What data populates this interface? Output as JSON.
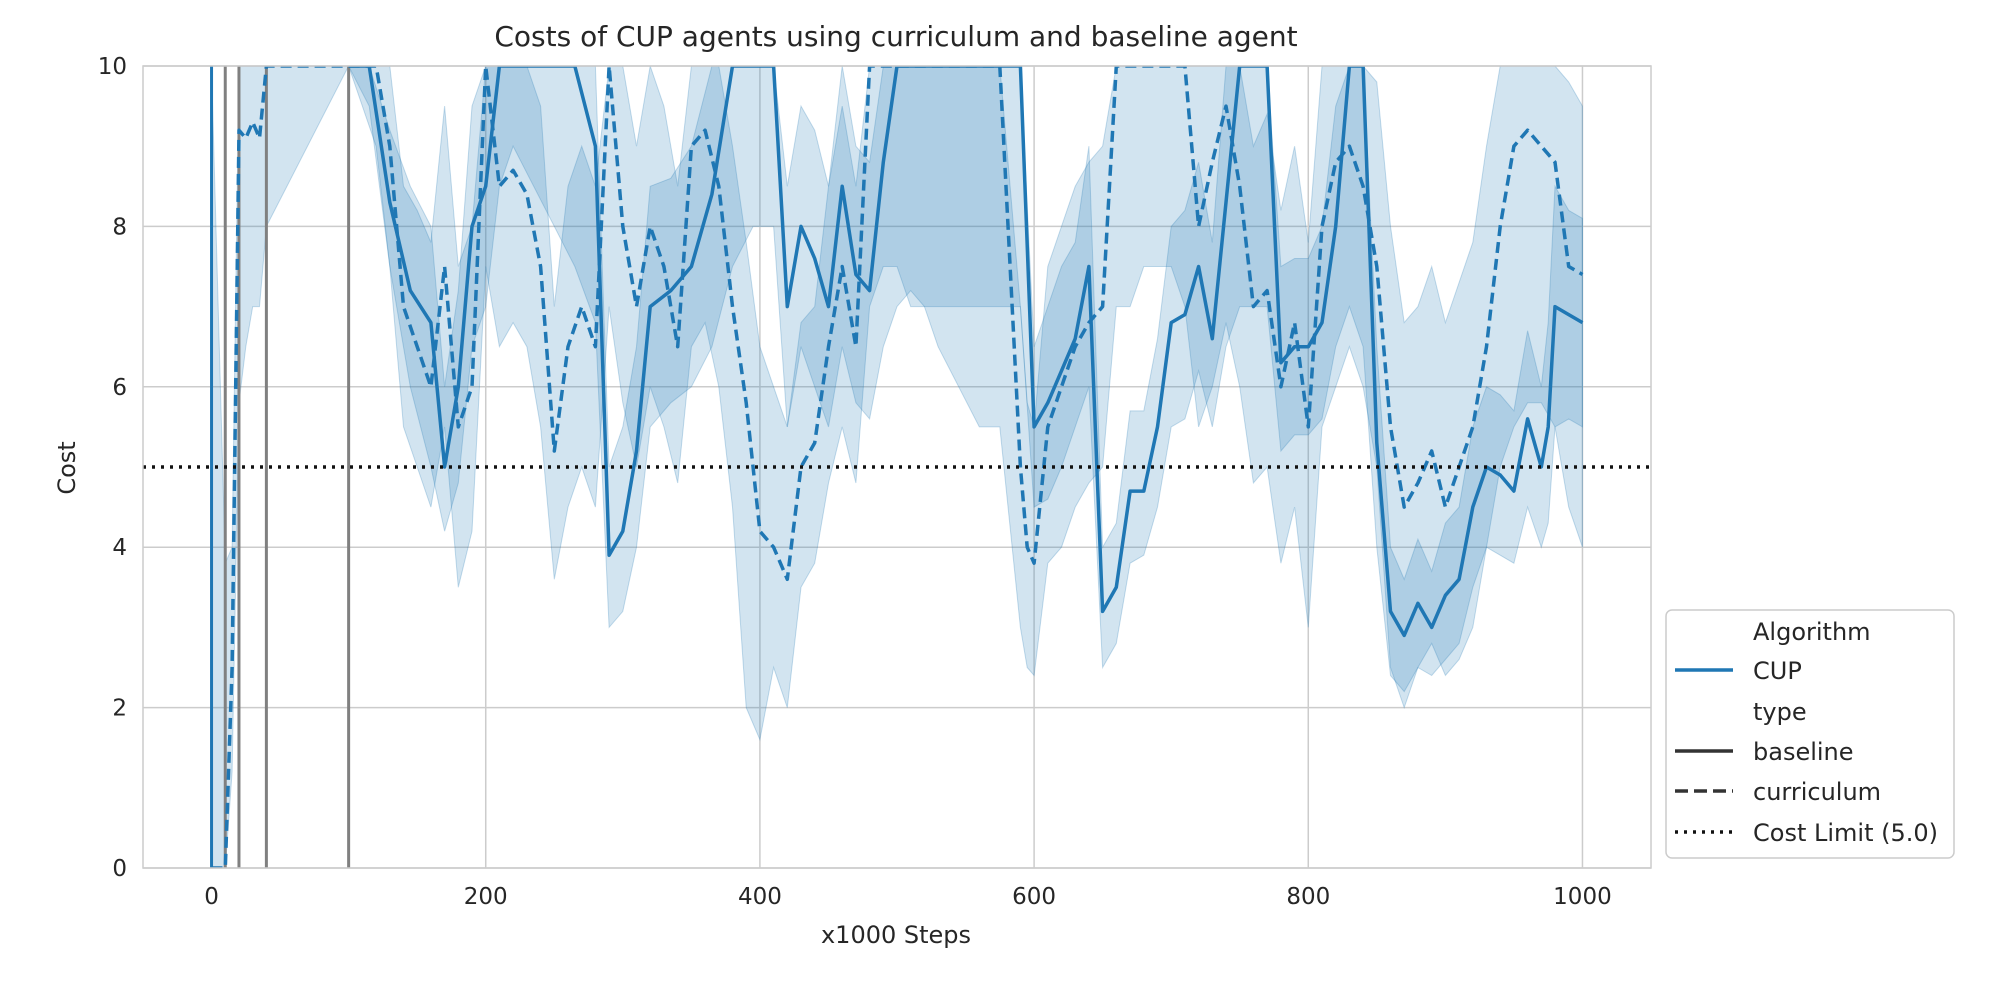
{
  "chart_data": {
    "type": "line",
    "title": "Costs of CUP agents using curriculum and baseline agent",
    "xlabel": "x1000 Steps",
    "ylabel": "Cost",
    "xlim": [
      -50,
      1050
    ],
    "ylim": [
      0,
      10
    ],
    "x_ticks": [
      0,
      200,
      400,
      600,
      800,
      1000
    ],
    "x_tick_labels": [
      "0",
      "200",
      "400",
      "600",
      "800",
      "1000"
    ],
    "y_ticks": [
      0,
      2,
      4,
      6,
      8,
      10
    ],
    "y_tick_labels": [
      "0",
      "2",
      "4",
      "6",
      "8",
      "10"
    ],
    "grid": true,
    "legend_position": "lower-right outside",
    "cost_limit": {
      "label": "Cost Limit (5.0)",
      "value": 5.0
    },
    "vertical_markers": [
      {
        "x": 0,
        "color": "#1f77b4"
      },
      {
        "x": 10,
        "color": "#808080"
      },
      {
        "x": 20,
        "color": "#808080"
      },
      {
        "x": 40,
        "color": "#808080"
      },
      {
        "x": 100,
        "color": "#808080"
      }
    ],
    "series": [
      {
        "name": "baseline",
        "style": "solid",
        "x": [
          100,
          115,
          130,
          145,
          160,
          170,
          180,
          190,
          200,
          210,
          220,
          235,
          250,
          265,
          280,
          290,
          300,
          310,
          320,
          335,
          350,
          365,
          380,
          395,
          410,
          420,
          430,
          440,
          450,
          460,
          470,
          480,
          490,
          500,
          510,
          520,
          530,
          545,
          560,
          575,
          590,
          600,
          610,
          620,
          630,
          640,
          650,
          660,
          670,
          680,
          690,
          700,
          710,
          720,
          730,
          740,
          750,
          760,
          770,
          780,
          790,
          800,
          810,
          820,
          830,
          840,
          850,
          860,
          870,
          880,
          890,
          900,
          910,
          920,
          930,
          940,
          950,
          960,
          970,
          975,
          980,
          990,
          1000
        ],
        "y": [
          10,
          10,
          8.3,
          7.2,
          6.8,
          5.0,
          6.0,
          8.0,
          8.5,
          10,
          10,
          10,
          10,
          10,
          9.0,
          3.9,
          4.2,
          5.2,
          7.0,
          7.2,
          7.5,
          8.4,
          10,
          10,
          10,
          7.0,
          8.0,
          7.6,
          7.0,
          8.5,
          7.4,
          7.2,
          8.8,
          10,
          10,
          10,
          10,
          10,
          10,
          10,
          10,
          5.5,
          5.8,
          6.2,
          6.6,
          7.5,
          3.2,
          3.5,
          4.7,
          4.7,
          5.5,
          6.8,
          6.9,
          7.5,
          6.6,
          8.3,
          10,
          10,
          10,
          6.3,
          6.5,
          6.5,
          6.8,
          8.0,
          10,
          10,
          5.3,
          3.2,
          2.9,
          3.3,
          3.0,
          3.4,
          3.6,
          4.5,
          5.0,
          4.9,
          4.7,
          5.6,
          5.0,
          5.5,
          7.0,
          6.9,
          6.8
        ],
        "band_lower": [
          10,
          9.5,
          7.5,
          6.0,
          5.0,
          4.2,
          4.8,
          6.5,
          7.0,
          8.5,
          9.0,
          8.5,
          8.0,
          7.5,
          6.8,
          3.0,
          3.2,
          4.0,
          5.5,
          5.8,
          6.0,
          6.5,
          7.5,
          8.0,
          8.0,
          5.5,
          6.5,
          6.0,
          5.5,
          6.5,
          5.8,
          5.6,
          6.5,
          7.0,
          7.2,
          7.0,
          7.0,
          7.0,
          7.0,
          7.0,
          7.0,
          4.5,
          4.6,
          5.0,
          5.5,
          6.0,
          2.5,
          2.8,
          3.8,
          3.9,
          4.5,
          5.5,
          5.6,
          6.2,
          5.5,
          6.5,
          7.0,
          7.0,
          7.0,
          5.2,
          5.4,
          5.4,
          5.6,
          6.5,
          7.0,
          6.5,
          4.0,
          2.4,
          2.2,
          2.5,
          2.4,
          2.6,
          2.8,
          3.5,
          4.0,
          3.9,
          3.8,
          4.5,
          4.0,
          4.3,
          5.5,
          5.6,
          5.5
        ],
        "band_upper": [
          10,
          10,
          9.2,
          8.5,
          8.0,
          6.0,
          7.2,
          9.5,
          10,
          10,
          10,
          10,
          10,
          10,
          10,
          5.0,
          5.5,
          6.5,
          8.5,
          8.6,
          9.0,
          10,
          10,
          10,
          10,
          8.5,
          9.5,
          9.2,
          8.5,
          10,
          9.0,
          8.8,
          10,
          10,
          10,
          10,
          10,
          10,
          10,
          10,
          10,
          6.5,
          7.0,
          7.5,
          7.8,
          9.0,
          4.0,
          4.3,
          5.7,
          5.7,
          6.6,
          8.0,
          8.2,
          8.8,
          7.8,
          10,
          10,
          10,
          10,
          7.5,
          7.6,
          7.6,
          8.0,
          9.5,
          10,
          10,
          6.5,
          4.0,
          3.6,
          4.1,
          3.7,
          4.3,
          4.5,
          5.5,
          6.0,
          5.9,
          5.7,
          6.7,
          6.0,
          6.8,
          8.5,
          8.2,
          8.1
        ]
      },
      {
        "name": "curriculum",
        "style": "dashed",
        "x": [
          0,
          10,
          15,
          20,
          25,
          30,
          35,
          40,
          100,
          120,
          130,
          140,
          150,
          160,
          170,
          180,
          190,
          200,
          210,
          220,
          230,
          240,
          250,
          260,
          270,
          280,
          290,
          300,
          310,
          320,
          330,
          340,
          350,
          360,
          370,
          380,
          390,
          400,
          410,
          420,
          430,
          440,
          450,
          460,
          470,
          480,
          490,
          500,
          510,
          520,
          530,
          545,
          560,
          575,
          590,
          595,
          600,
          610,
          620,
          630,
          640,
          650,
          660,
          670,
          680,
          690,
          700,
          710,
          720,
          730,
          740,
          750,
          760,
          770,
          780,
          790,
          800,
          810,
          820,
          830,
          840,
          850,
          860,
          870,
          880,
          890,
          900,
          910,
          920,
          930,
          940,
          950,
          960,
          970,
          980,
          990,
          1000
        ],
        "y": [
          0,
          0,
          2.5,
          9.2,
          9.1,
          9.3,
          9.1,
          10,
          10,
          10,
          9.0,
          7.0,
          6.5,
          6.0,
          7.5,
          5.5,
          6.0,
          10,
          8.5,
          8.7,
          8.4,
          7.5,
          5.2,
          6.5,
          7.0,
          6.5,
          10,
          8.0,
          7.0,
          8.0,
          7.5,
          6.5,
          9.0,
          9.2,
          8.5,
          7.0,
          5.8,
          4.2,
          4.0,
          3.6,
          5.0,
          5.3,
          6.5,
          7.5,
          6.5,
          10,
          10,
          10,
          10,
          10,
          10,
          10,
          10,
          10,
          5.0,
          4.0,
          3.8,
          5.5,
          6.0,
          6.5,
          6.8,
          7.0,
          10,
          10,
          10,
          10,
          10,
          10,
          8.0,
          8.8,
          9.5,
          8.5,
          7.0,
          7.2,
          6.0,
          6.8,
          5.5,
          8.0,
          8.8,
          9.0,
          8.5,
          7.5,
          5.5,
          4.5,
          4.8,
          5.2,
          4.5,
          5.0,
          5.5,
          6.5,
          8.0,
          9.0,
          9.2,
          9.0,
          8.8,
          7.5,
          7.4
        ],
        "band_lower": [
          0,
          0,
          1.2,
          5.8,
          6.5,
          7.0,
          7.0,
          8.0,
          10,
          9.0,
          7.5,
          5.5,
          5.0,
          4.5,
          5.5,
          3.5,
          4.2,
          7.5,
          6.5,
          6.8,
          6.5,
          5.5,
          3.6,
          4.5,
          5.0,
          4.5,
          7.0,
          5.8,
          5.0,
          6.0,
          5.5,
          4.8,
          6.5,
          6.8,
          6.0,
          4.5,
          2.0,
          1.6,
          2.5,
          2.0,
          3.5,
          3.8,
          4.8,
          5.5,
          4.8,
          7.0,
          7.5,
          7.5,
          7.0,
          7.0,
          6.5,
          6.0,
          5.5,
          5.5,
          3.0,
          2.5,
          2.4,
          3.8,
          4.0,
          4.5,
          4.8,
          5.0,
          7.0,
          7.0,
          7.5,
          7.5,
          7.5,
          7.0,
          5.5,
          6.0,
          6.8,
          6.0,
          4.8,
          5.0,
          3.8,
          4.5,
          3.0,
          5.5,
          6.0,
          6.5,
          6.0,
          5.0,
          2.5,
          2.0,
          2.5,
          2.8,
          2.4,
          2.6,
          3.0,
          4.0,
          5.0,
          5.5,
          5.8,
          5.8,
          5.5,
          4.5,
          4.0
        ],
        "band_upper": [
          10,
          3.8,
          4.0,
          10,
          10,
          10,
          10,
          10,
          10,
          10,
          10,
          8.5,
          8.2,
          7.8,
          9.5,
          7.5,
          8.0,
          10,
          10,
          10,
          10,
          9.5,
          7.0,
          8.5,
          9.0,
          8.5,
          10,
          10,
          9.0,
          10,
          9.5,
          8.5,
          10,
          10,
          10,
          9.0,
          7.8,
          6.5,
          6.0,
          5.5,
          6.8,
          7.0,
          8.5,
          9.5,
          8.5,
          10,
          10,
          10,
          10,
          10,
          10,
          10,
          10,
          10,
          7.0,
          5.8,
          5.5,
          7.5,
          8.0,
          8.5,
          8.8,
          9.0,
          10,
          10,
          10,
          10,
          10,
          10,
          10,
          10,
          10,
          10,
          9.0,
          9.4,
          8.2,
          9.0,
          7.8,
          10,
          10,
          10,
          10,
          9.8,
          8.0,
          6.8,
          7.0,
          7.5,
          6.8,
          7.3,
          7.8,
          9.0,
          10,
          10,
          10,
          10,
          10,
          9.8,
          9.5
        ]
      }
    ],
    "legend": {
      "title": "Algorithm",
      "algorithm_entry": "CUP",
      "type_title": "type",
      "type_entries": [
        "baseline",
        "curriculum"
      ],
      "limit_entry": "Cost Limit (5.0)"
    },
    "colors": {
      "series": "#1f77b4",
      "marker_gray": "#808080",
      "grid": "#cccccc",
      "text": "#262626",
      "limit": "#111111"
    }
  }
}
